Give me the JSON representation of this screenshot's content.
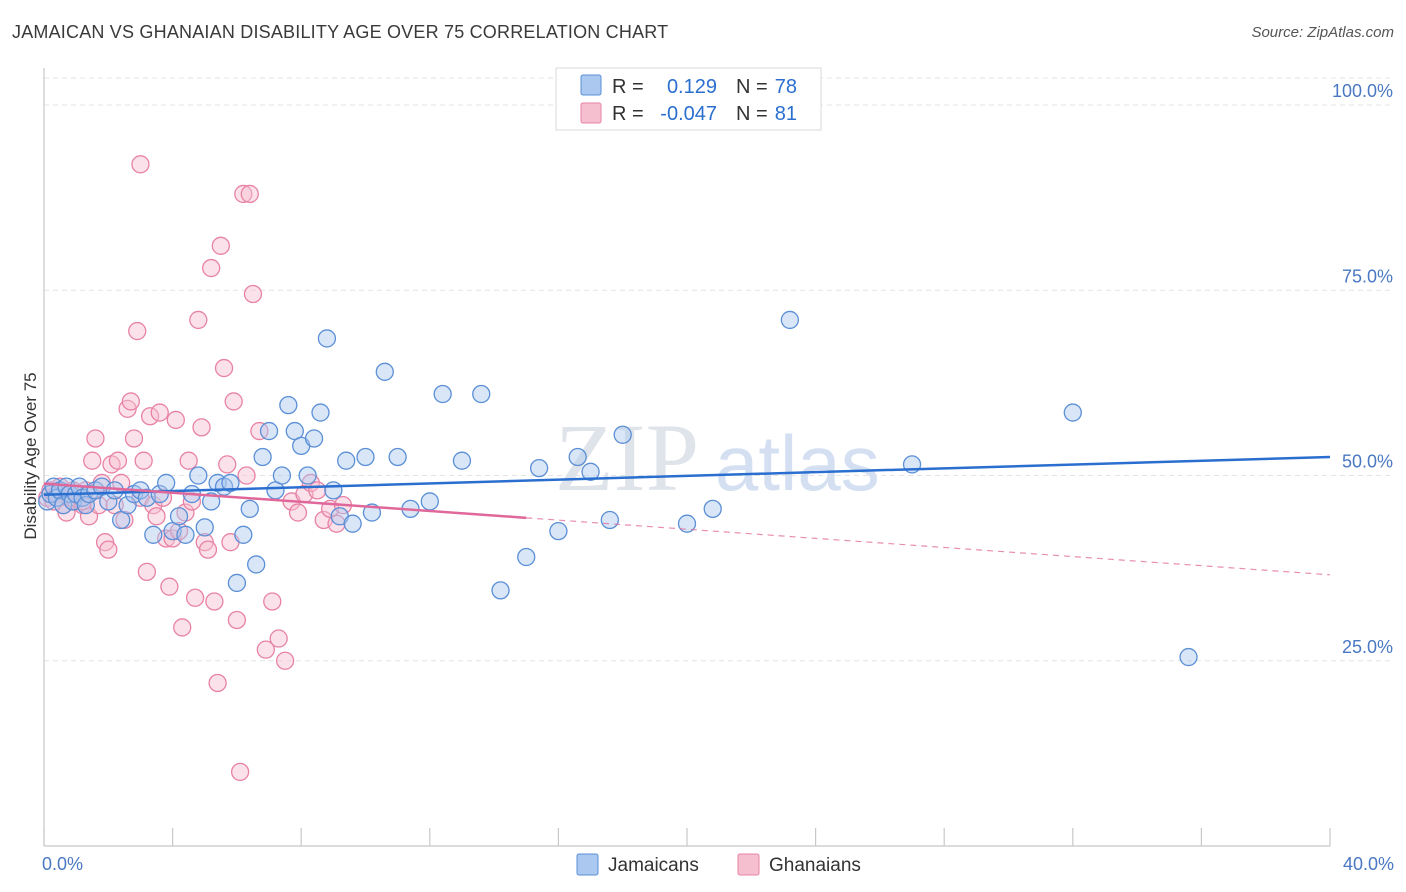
{
  "header": {
    "title": "JAMAICAN VS GHANAIAN DISABILITY AGE OVER 75 CORRELATION CHART",
    "source": "Source: ZipAtlas.com"
  },
  "watermark": {
    "zip": "ZIP",
    "atlas": "atlas"
  },
  "colors": {
    "jamaicans_fill": "#aac8f0",
    "jamaicans_stroke": "#5b8fd6",
    "jamaicans_line": "#2a6fcf",
    "ghanaians_fill": "#f6bfd0",
    "ghanaians_stroke": "#e882a5",
    "ghanaians_line": "#e0679a",
    "tick_text": "#4a78c2"
  },
  "legend": {
    "rows": [
      {
        "r_label": "R =",
        "r_value": "0.129",
        "n_label": "N =",
        "n_value": "78"
      },
      {
        "r_label": "R =",
        "r_value": "-0.047",
        "n_label": "N =",
        "n_value": "81"
      }
    ]
  },
  "chart_data": {
    "type": "scatter",
    "title": "JAMAICAN VS GHANAIAN DISABILITY AGE OVER 75 CORRELATION CHART",
    "xlabel": "",
    "ylabel": "Disability Age Over 75",
    "xlim": [
      0,
      40
    ],
    "ylim": [
      0,
      105
    ],
    "x_tick_labels": [
      "0.0%",
      "40.0%"
    ],
    "y_ticks": [
      25,
      50,
      75,
      100
    ],
    "y_tick_labels": [
      "25.0%",
      "50.0%",
      "75.0%",
      "100.0%"
    ],
    "grid": true,
    "legend_position": "bottom-center",
    "series": [
      {
        "name": "Jamaicans",
        "r": 0.129,
        "n": 78,
        "trend": {
          "x": [
            0,
            40
          ],
          "y": [
            47.4,
            52.5
          ]
        },
        "points": [
          [
            0.1,
            46.5
          ],
          [
            0.2,
            47.5
          ],
          [
            0.3,
            48.5
          ],
          [
            0.4,
            47
          ],
          [
            0.5,
            48
          ],
          [
            0.6,
            46
          ],
          [
            0.7,
            48.5
          ],
          [
            0.8,
            47.5
          ],
          [
            0.9,
            46.5
          ],
          [
            1.0,
            47.5
          ],
          [
            1.1,
            48.5
          ],
          [
            1.2,
            47
          ],
          [
            1.3,
            46
          ],
          [
            1.4,
            47.5
          ],
          [
            1.6,
            48
          ],
          [
            1.8,
            48.5
          ],
          [
            2.0,
            46.5
          ],
          [
            2.2,
            48
          ],
          [
            2.4,
            44
          ],
          [
            2.6,
            46
          ],
          [
            2.8,
            47.5
          ],
          [
            3.0,
            48
          ],
          [
            3.2,
            47
          ],
          [
            3.4,
            42
          ],
          [
            3.6,
            47.5
          ],
          [
            3.8,
            49
          ],
          [
            4.0,
            42.5
          ],
          [
            4.2,
            44.5
          ],
          [
            4.4,
            42
          ],
          [
            4.6,
            47.5
          ],
          [
            4.8,
            50
          ],
          [
            5.0,
            43
          ],
          [
            5.2,
            46.5
          ],
          [
            5.4,
            49
          ],
          [
            5.6,
            48.5
          ],
          [
            5.8,
            49
          ],
          [
            6.0,
            35.5
          ],
          [
            6.2,
            42
          ],
          [
            6.4,
            45.5
          ],
          [
            6.6,
            38
          ],
          [
            6.8,
            52.5
          ],
          [
            7.0,
            56
          ],
          [
            7.2,
            48
          ],
          [
            7.4,
            50
          ],
          [
            7.6,
            59.5
          ],
          [
            7.8,
            56
          ],
          [
            8.0,
            54
          ],
          [
            8.2,
            50
          ],
          [
            8.4,
            55
          ],
          [
            8.6,
            58.5
          ],
          [
            8.8,
            68.5
          ],
          [
            9.0,
            48
          ],
          [
            9.2,
            44.5
          ],
          [
            9.4,
            52
          ],
          [
            9.6,
            43.5
          ],
          [
            10.0,
            52.5
          ],
          [
            10.2,
            45
          ],
          [
            10.6,
            64
          ],
          [
            11.0,
            52.5
          ],
          [
            11.4,
            45.5
          ],
          [
            12.0,
            46.5
          ],
          [
            12.4,
            61
          ],
          [
            13.0,
            52
          ],
          [
            13.6,
            61
          ],
          [
            14.2,
            34.5
          ],
          [
            15.0,
            39
          ],
          [
            15.4,
            51
          ],
          [
            16.0,
            42.5
          ],
          [
            16.6,
            52.5
          ],
          [
            17.0,
            50.5
          ],
          [
            17.6,
            44
          ],
          [
            18.0,
            55.5
          ],
          [
            20.0,
            43.5
          ],
          [
            20.8,
            45.5
          ],
          [
            23.2,
            71
          ],
          [
            27.0,
            51.5
          ],
          [
            32.0,
            58.5
          ],
          [
            35.6,
            25.5
          ]
        ]
      },
      {
        "name": "Ghanaians",
        "r": -0.047,
        "n": 81,
        "trend": {
          "x": [
            0,
            40
          ],
          "y": [
            48.9,
            36.6
          ]
        },
        "points": [
          [
            0.1,
            47
          ],
          [
            0.2,
            48
          ],
          [
            0.3,
            46.5
          ],
          [
            0.4,
            47.5
          ],
          [
            0.5,
            48.5
          ],
          [
            0.6,
            46
          ],
          [
            0.7,
            45
          ],
          [
            0.8,
            47
          ],
          [
            0.9,
            48
          ],
          [
            1.0,
            46.5
          ],
          [
            1.1,
            47.5
          ],
          [
            1.2,
            46
          ],
          [
            1.3,
            48
          ],
          [
            1.4,
            44.5
          ],
          [
            1.5,
            52
          ],
          [
            1.6,
            55
          ],
          [
            1.7,
            46
          ],
          [
            1.8,
            49
          ],
          [
            1.9,
            41
          ],
          [
            2.0,
            40
          ],
          [
            2.1,
            51.5
          ],
          [
            2.2,
            46
          ],
          [
            2.3,
            52
          ],
          [
            2.4,
            49
          ],
          [
            2.5,
            44
          ],
          [
            2.6,
            59
          ],
          [
            2.7,
            60
          ],
          [
            2.8,
            55
          ],
          [
            2.9,
            69.5
          ],
          [
            3.0,
            47
          ],
          [
            3.1,
            52
          ],
          [
            3.2,
            37
          ],
          [
            3.3,
            58
          ],
          [
            3.4,
            46
          ],
          [
            3.5,
            44.5
          ],
          [
            3.6,
            58.5
          ],
          [
            3.7,
            47
          ],
          [
            3.8,
            41.5
          ],
          [
            3.9,
            35
          ],
          [
            4.0,
            41.5
          ],
          [
            4.1,
            57.5
          ],
          [
            4.2,
            42.5
          ],
          [
            4.3,
            29.5
          ],
          [
            4.4,
            45
          ],
          [
            4.5,
            52
          ],
          [
            4.6,
            46.5
          ],
          [
            4.7,
            33.5
          ],
          [
            4.8,
            71
          ],
          [
            4.9,
            56.5
          ],
          [
            5.0,
            41
          ],
          [
            5.1,
            40
          ],
          [
            5.2,
            78
          ],
          [
            5.3,
            33
          ],
          [
            5.4,
            22
          ],
          [
            5.5,
            81
          ],
          [
            5.6,
            64.5
          ],
          [
            5.7,
            51.5
          ],
          [
            5.8,
            41
          ],
          [
            5.9,
            60
          ],
          [
            6.0,
            30.5
          ],
          [
            6.1,
            10
          ],
          [
            6.2,
            88
          ],
          [
            6.3,
            50
          ],
          [
            6.4,
            88
          ],
          [
            6.5,
            74.5
          ],
          [
            6.7,
            56
          ],
          [
            6.9,
            26.5
          ],
          [
            7.1,
            33
          ],
          [
            7.3,
            28
          ],
          [
            7.5,
            25
          ],
          [
            7.7,
            46.5
          ],
          [
            7.9,
            45
          ],
          [
            8.1,
            47.5
          ],
          [
            8.3,
            49
          ],
          [
            8.5,
            48
          ],
          [
            8.7,
            44
          ],
          [
            8.9,
            45.5
          ],
          [
            9.1,
            43.5
          ],
          [
            9.3,
            46
          ],
          [
            3.0,
            92
          ],
          [
            1.2,
            46.5
          ]
        ]
      }
    ]
  },
  "bottom_legend": {
    "items": [
      {
        "label": "Jamaicans"
      },
      {
        "label": "Ghanaians"
      }
    ]
  }
}
